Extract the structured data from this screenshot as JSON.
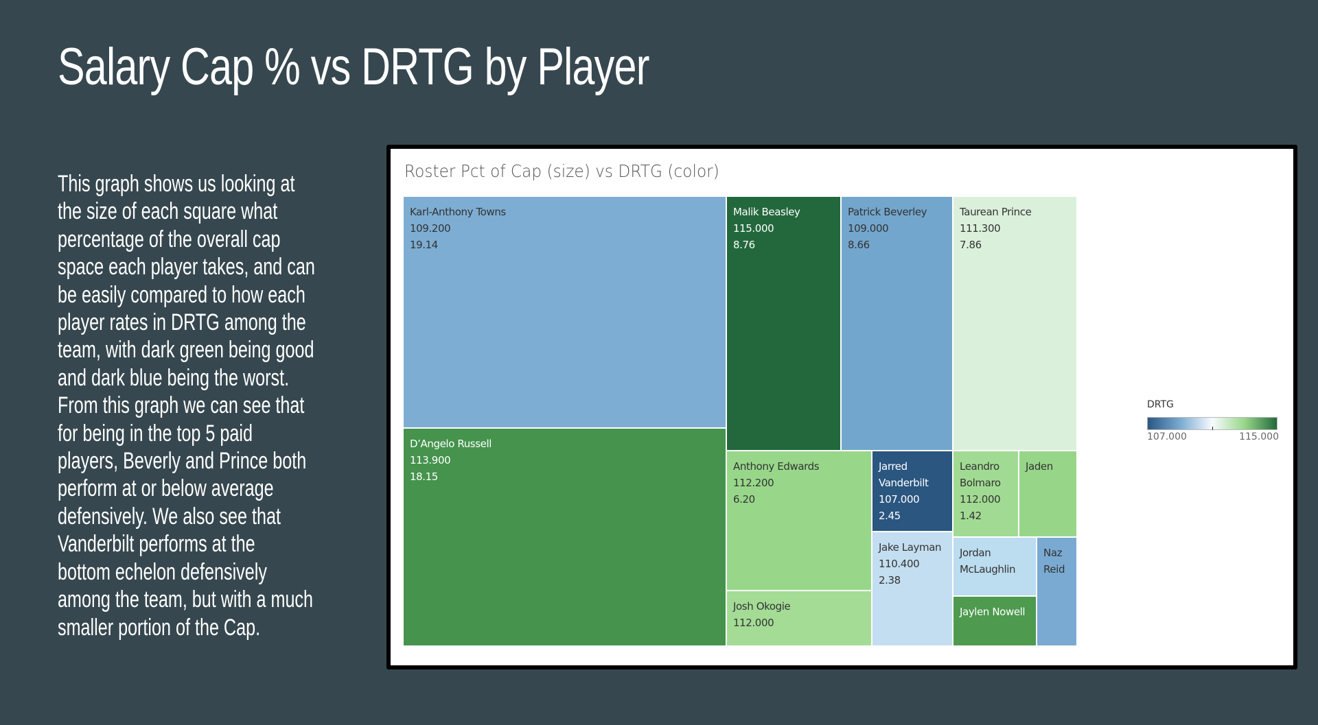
{
  "slide": {
    "title": "Salary Cap % vs DRTG by Player",
    "description": "This graph shows us looking at\nthe size of each square what\npercentage of the overall cap\nspace each player takes, and can\nbe easily compared to how each\nplayer rates in DRTG among the\nteam, with dark green being good\nand dark blue being the worst.\nFrom this graph we can see that\nfor being in the top 5 paid\nplayers, Beverly and Prince both\nperform at or below average\ndefensively. We also see that\nVanderbilt performs at the\nbottom echelon defensively\namong the team, but with a much\nsmaller portion of the Cap."
  },
  "chart_data": {
    "type": "treemap",
    "title": "Roster Pct of Cap (size) vs DRTG (color)",
    "size_measure": "Roster Pct of Cap",
    "color_measure": "DRTG",
    "legend": {
      "title": "DRTG",
      "min_label": "107.000",
      "max_label": "115.000",
      "min": 107.0,
      "max": 115.0,
      "colors": [
        "#2a5783",
        "#7aaad1",
        "#f7fbff",
        "#98d78a",
        "#23693b"
      ],
      "placement": "right"
    },
    "players": [
      {
        "name": "Karl-Anthony Towns",
        "drtg": 109.2,
        "drtg_label": "109.200",
        "pct_cap": 19.14,
        "pct_label": "19.14",
        "color": "#7dadd3",
        "text_color": "#333333"
      },
      {
        "name": "D’Angelo Russell",
        "drtg": 113.9,
        "drtg_label": "113.900",
        "pct_cap": 18.15,
        "pct_label": "18.15",
        "color": "#45934d",
        "text_color": "#ffffff"
      },
      {
        "name": "Malik Beasley",
        "drtg": 115.0,
        "drtg_label": "115.000",
        "pct_cap": 8.76,
        "pct_label": "8.76",
        "color": "#23683c",
        "text_color": "#ffffff"
      },
      {
        "name": "Patrick Beverley",
        "drtg": 109.0,
        "drtg_label": "109.000",
        "pct_cap": 8.66,
        "pct_label": "8.66",
        "color": "#73a6cd",
        "text_color": "#333333"
      },
      {
        "name": "Taurean Prince",
        "drtg": 111.3,
        "drtg_label": "111.300",
        "pct_cap": 7.86,
        "pct_label": "7.86",
        "color": "#dbf0db",
        "text_color": "#333333"
      },
      {
        "name": "Anthony Edwards",
        "drtg": 112.2,
        "drtg_label": "112.200",
        "pct_cap": 6.2,
        "pct_label": "6.20",
        "color": "#98d78a",
        "text_color": "#333333"
      },
      {
        "name": "Josh Okogie",
        "drtg": 112.0,
        "drtg_label": "112.000",
        "pct_cap": null,
        "pct_label": null,
        "color": "#a4dc96",
        "text_color": "#333333"
      },
      {
        "name": "Jarred Vanderbilt",
        "drtg": 107.0,
        "drtg_label": "107.000",
        "pct_cap": 2.45,
        "pct_label": "2.45",
        "color": "#2a5680",
        "text_color": "#ffffff"
      },
      {
        "name": "Jake Layman",
        "drtg": 110.4,
        "drtg_label": "110.400",
        "pct_cap": 2.38,
        "pct_label": "2.38",
        "color": "#c3def0",
        "text_color": "#333333"
      },
      {
        "name": "Leandro Bolmaro",
        "drtg": 112.0,
        "drtg_label": "112.000",
        "pct_cap": 1.42,
        "pct_label": "1.42",
        "color": "#a1db93",
        "text_color": "#333333"
      },
      {
        "name": "Jaden",
        "drtg": null,
        "drtg_label": null,
        "pct_cap": null,
        "pct_label": null,
        "color": "#97d689",
        "text_color": "#333333"
      },
      {
        "name": "Jordan McLaughlin",
        "drtg": null,
        "drtg_label": null,
        "pct_cap": null,
        "pct_label": null,
        "color": "#bcdcef",
        "text_color": "#333333"
      },
      {
        "name": "Jaylen Nowell",
        "drtg": null,
        "drtg_label": null,
        "pct_cap": null,
        "pct_label": null,
        "color": "#4e9a4f",
        "text_color": "#ffffff"
      },
      {
        "name": "Naz Reid",
        "drtg": null,
        "drtg_label": null,
        "pct_cap": null,
        "pct_label": null,
        "color": "#7aaad1",
        "text_color": "#333333"
      }
    ]
  }
}
